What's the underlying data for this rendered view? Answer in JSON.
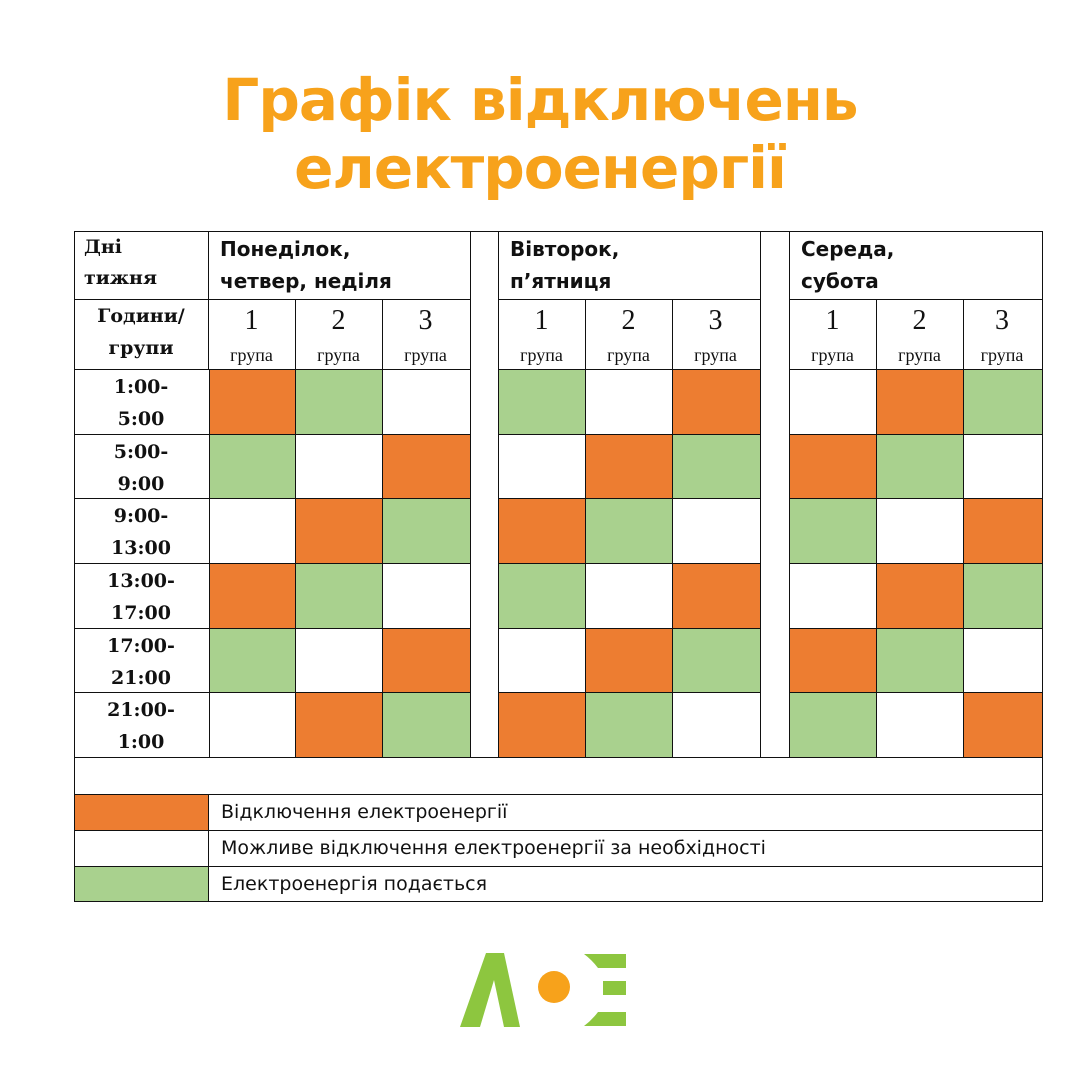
{
  "title": {
    "line1": "Графік відключень",
    "line2": "електроенергії",
    "color": "#F7A21B"
  },
  "colors": {
    "off": "#ED7D31",
    "on": "#A9D18E",
    "maybe": "#FFFFFF"
  },
  "table": {
    "corner_top": [
      "Дні",
      "тижня"
    ],
    "corner_bottom": [
      "Години/",
      "групи"
    ],
    "days": [
      {
        "label": [
          "Понеділок,",
          "четвер, неділя"
        ],
        "schedule": [
          [
            "off",
            "on",
            "maybe"
          ],
          [
            "on",
            "maybe",
            "off"
          ],
          [
            "maybe",
            "off",
            "on"
          ],
          [
            "off",
            "on",
            "maybe"
          ],
          [
            "on",
            "maybe",
            "off"
          ],
          [
            "maybe",
            "off",
            "on"
          ]
        ]
      },
      {
        "label": [
          "Вівторок,",
          "п’ятниця"
        ],
        "schedule": [
          [
            "on",
            "maybe",
            "off"
          ],
          [
            "maybe",
            "off",
            "on"
          ],
          [
            "off",
            "on",
            "maybe"
          ],
          [
            "on",
            "maybe",
            "off"
          ],
          [
            "maybe",
            "off",
            "on"
          ],
          [
            "off",
            "on",
            "maybe"
          ]
        ]
      },
      {
        "label": [
          "Середа,",
          "субота"
        ],
        "schedule": [
          [
            "maybe",
            "off",
            "on"
          ],
          [
            "off",
            "on",
            "maybe"
          ],
          [
            "on",
            "maybe",
            "off"
          ],
          [
            "maybe",
            "off",
            "on"
          ],
          [
            "off",
            "on",
            "maybe"
          ],
          [
            "on",
            "maybe",
            "off"
          ]
        ]
      }
    ],
    "groups": [
      {
        "num": "1",
        "label": "група"
      },
      {
        "num": "2",
        "label": "група"
      },
      {
        "num": "3",
        "label": "група"
      }
    ],
    "time_slots": [
      [
        "1:00-",
        "5:00"
      ],
      [
        "5:00-",
        "9:00"
      ],
      [
        "9:00-",
        "13:00"
      ],
      [
        "13:00-",
        "17:00"
      ],
      [
        "17:00-",
        "21:00"
      ],
      [
        "21:00-",
        "1:00"
      ]
    ]
  },
  "legend": [
    {
      "state": "off",
      "label": "Відключення електроенергії"
    },
    {
      "state": "maybe",
      "label": "Можливе відключення електроенергії за необхідності"
    },
    {
      "state": "on",
      "label": "Електроенергія подається"
    }
  ],
  "logo": {
    "text": "ЛОЕ",
    "green": "#8DC63F",
    "orange": "#F7A21B"
  }
}
